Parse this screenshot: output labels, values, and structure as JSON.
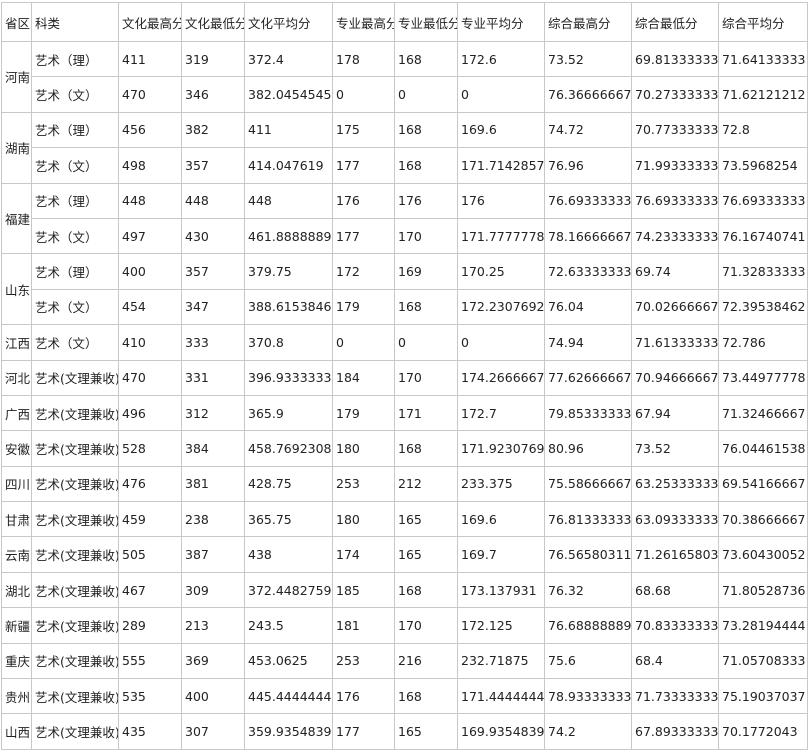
{
  "table": {
    "header": [
      "省区",
      "科类",
      "文化最高分",
      "文化最低分",
      "文化平均分",
      "专业最高分",
      "专业最低分",
      "专业平均分",
      "综合最高分",
      "综合最低分",
      "综合平均分"
    ],
    "groups": [
      {
        "province": "河南",
        "rows": [
          [
            "艺术（理）",
            "411",
            "319",
            "372.4",
            "178",
            "168",
            "172.6",
            "73.52",
            "69.81333333",
            "71.64133333"
          ],
          [
            "艺术（文）",
            "470",
            "346",
            "382.0454545",
            "0",
            "0",
            "0",
            "76.36666667",
            "70.27333333",
            "71.62121212"
          ]
        ]
      },
      {
        "province": "湖南",
        "rows": [
          [
            "艺术（理）",
            "456",
            "382",
            "411",
            "175",
            "168",
            "169.6",
            "74.72",
            "70.77333333",
            "72.8"
          ],
          [
            "艺术（文）",
            "498",
            "357",
            "414.047619",
            "177",
            "168",
            "171.7142857",
            "76.96",
            "71.99333333",
            "73.5968254"
          ]
        ]
      },
      {
        "province": "福建",
        "rows": [
          [
            "艺术（理）",
            "448",
            "448",
            "448",
            "176",
            "176",
            "176",
            "76.69333333",
            "76.69333333",
            "76.69333333"
          ],
          [
            "艺术（文）",
            "497",
            "430",
            "461.8888889",
            "177",
            "170",
            "171.7777778",
            "78.16666667",
            "74.23333333",
            "76.16740741"
          ]
        ]
      },
      {
        "province": "山东",
        "rows": [
          [
            "艺术（理）",
            "400",
            "357",
            "379.75",
            "172",
            "169",
            "170.25",
            "72.63333333",
            "69.74",
            "71.32833333"
          ],
          [
            "艺术（文）",
            "454",
            "347",
            "388.6153846",
            "179",
            "168",
            "172.2307692",
            "76.04",
            "70.02666667",
            "72.39538462"
          ]
        ]
      },
      {
        "province": "江西",
        "rows": [
          [
            "艺术（文）",
            "410",
            "333",
            "370.8",
            "0",
            "0",
            "0",
            "74.94",
            "71.61333333",
            "72.786"
          ]
        ]
      },
      {
        "province": "河北",
        "rows": [
          [
            "艺术(文理兼收)",
            "470",
            "331",
            "396.9333333",
            "184",
            "170",
            "174.2666667",
            "77.62666667",
            "70.94666667",
            "73.44977778"
          ]
        ]
      },
      {
        "province": "广西",
        "rows": [
          [
            "艺术(文理兼收)",
            "496",
            "312",
            "365.9",
            "179",
            "171",
            "172.7",
            "79.85333333",
            "67.94",
            "71.32466667"
          ]
        ]
      },
      {
        "province": "安徽",
        "rows": [
          [
            "艺术(文理兼收)",
            "528",
            "384",
            "458.7692308",
            "180",
            "168",
            "171.9230769",
            "80.96",
            "73.52",
            "76.04461538"
          ]
        ]
      },
      {
        "province": "四川",
        "rows": [
          [
            "艺术(文理兼收)",
            "476",
            "381",
            "428.75",
            "253",
            "212",
            "233.375",
            "75.58666667",
            "63.25333333",
            "69.54166667"
          ]
        ]
      },
      {
        "province": "甘肃",
        "rows": [
          [
            "艺术(文理兼收)",
            "459",
            "238",
            "365.75",
            "180",
            "165",
            "169.6",
            "76.81333333",
            "63.09333333",
            "70.38666667"
          ]
        ]
      },
      {
        "province": "云南",
        "rows": [
          [
            "艺术(文理兼收)",
            "505",
            "387",
            "438",
            "174",
            "165",
            "169.7",
            "76.56580311",
            "71.26165803",
            "73.60430052"
          ]
        ]
      },
      {
        "province": "湖北",
        "rows": [
          [
            "艺术(文理兼收)",
            "467",
            "309",
            "372.4482759",
            "185",
            "168",
            "173.137931",
            "76.32",
            "68.68",
            "71.80528736"
          ]
        ]
      },
      {
        "province": "新疆",
        "rows": [
          [
            "艺术(文理兼收)",
            "289",
            "213",
            "243.5",
            "181",
            "170",
            "172.125",
            "76.68888889",
            "70.83333333",
            "73.28194444"
          ]
        ]
      },
      {
        "province": "重庆",
        "rows": [
          [
            "艺术(文理兼收)",
            "555",
            "369",
            "453.0625",
            "253",
            "216",
            "232.71875",
            "75.6",
            "68.4",
            "71.05708333"
          ]
        ]
      },
      {
        "province": "贵州",
        "rows": [
          [
            "艺术(文理兼收)",
            "535",
            "400",
            "445.4444444",
            "176",
            "168",
            "171.4444444",
            "78.93333333",
            "71.73333333",
            "75.19037037"
          ]
        ]
      },
      {
        "province": "山西",
        "rows": [
          [
            "艺术(文理兼收)",
            "435",
            "307",
            "359.9354839",
            "177",
            "165",
            "169.9354839",
            "74.2",
            "67.89333333",
            "70.1772043"
          ]
        ]
      }
    ]
  }
}
